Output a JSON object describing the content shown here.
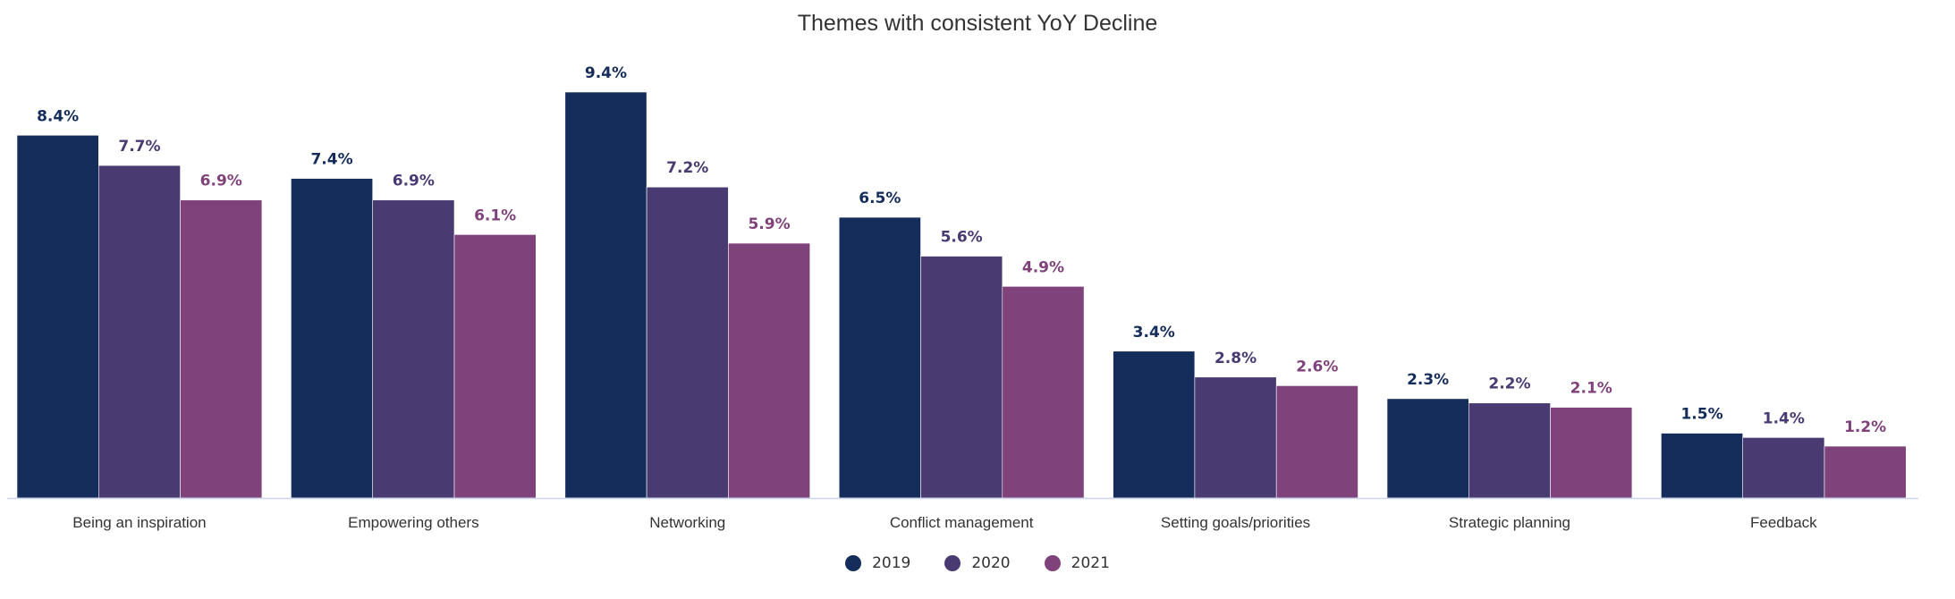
{
  "chart_data": {
    "type": "bar",
    "title": "Themes with consistent YoY Decline",
    "categories": [
      "Being an inspiration",
      "Empowering others",
      "Networking",
      "Conflict management",
      "Setting goals/priorities",
      "Strategic planning",
      "Feedback"
    ],
    "series": [
      {
        "name": "2019",
        "color": "#142d5a",
        "values": [
          8.4,
          7.4,
          9.4,
          6.5,
          3.4,
          2.3,
          1.5
        ]
      },
      {
        "name": "2020",
        "color": "#4a3a72",
        "values": [
          7.7,
          6.9,
          7.2,
          5.6,
          2.8,
          2.2,
          1.4
        ]
      },
      {
        "name": "2021",
        "color": "#7f427b",
        "values": [
          6.9,
          6.1,
          5.9,
          4.9,
          2.6,
          2.1,
          1.2
        ]
      }
    ],
    "value_suffix": "%",
    "xlabel": "",
    "ylabel": "",
    "grid": false,
    "legend_position": "bottom"
  }
}
